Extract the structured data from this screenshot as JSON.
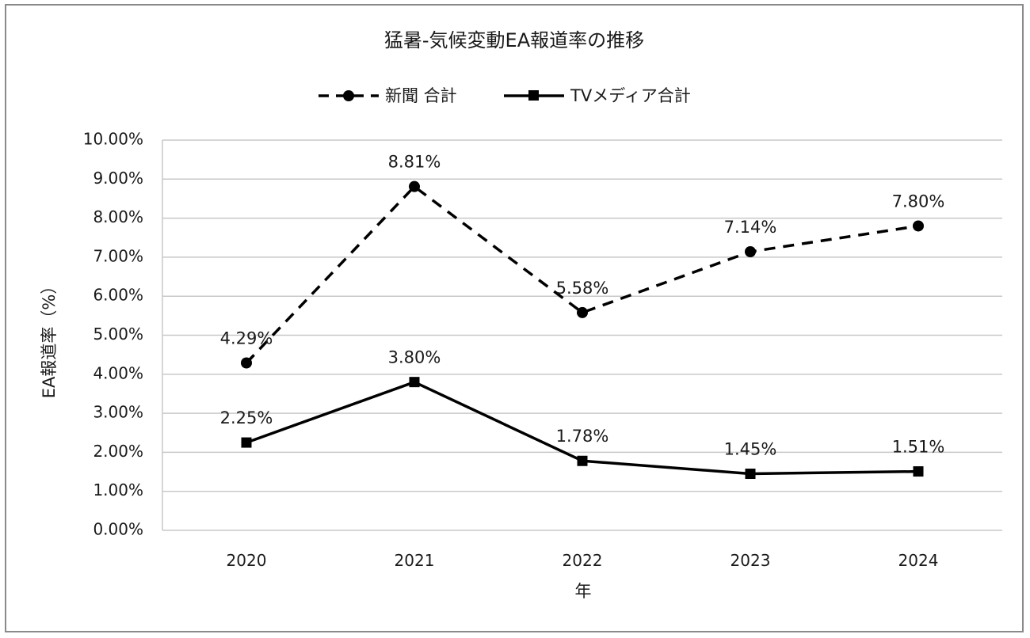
{
  "chart_data": {
    "type": "line",
    "title": "猛暑-気候変動EA報道率の推移",
    "xlabel": "年",
    "ylabel": "EA報道率（%）",
    "categories": [
      "2020",
      "2021",
      "2022",
      "2023",
      "2024"
    ],
    "ylim": [
      0,
      10
    ],
    "y_ticks": [
      "0.00%",
      "1.00%",
      "2.00%",
      "3.00%",
      "4.00%",
      "5.00%",
      "6.00%",
      "7.00%",
      "8.00%",
      "9.00%",
      "10.00%"
    ],
    "grid": true,
    "legend_position": "top",
    "series": [
      {
        "name": "新聞 合計",
        "values": [
          4.29,
          8.81,
          5.58,
          7.14,
          7.8
        ],
        "labels": [
          "4.29%",
          "8.81%",
          "5.58%",
          "7.14%",
          "7.80%"
        ],
        "line_style": "dashed",
        "marker": "circle",
        "color": "#000000"
      },
      {
        "name": "TVメディア合計",
        "values": [
          2.25,
          3.8,
          1.78,
          1.45,
          1.51
        ],
        "labels": [
          "2.25%",
          "3.80%",
          "1.78%",
          "1.45%",
          "1.51%"
        ],
        "line_style": "solid",
        "marker": "square",
        "color": "#000000"
      }
    ]
  }
}
